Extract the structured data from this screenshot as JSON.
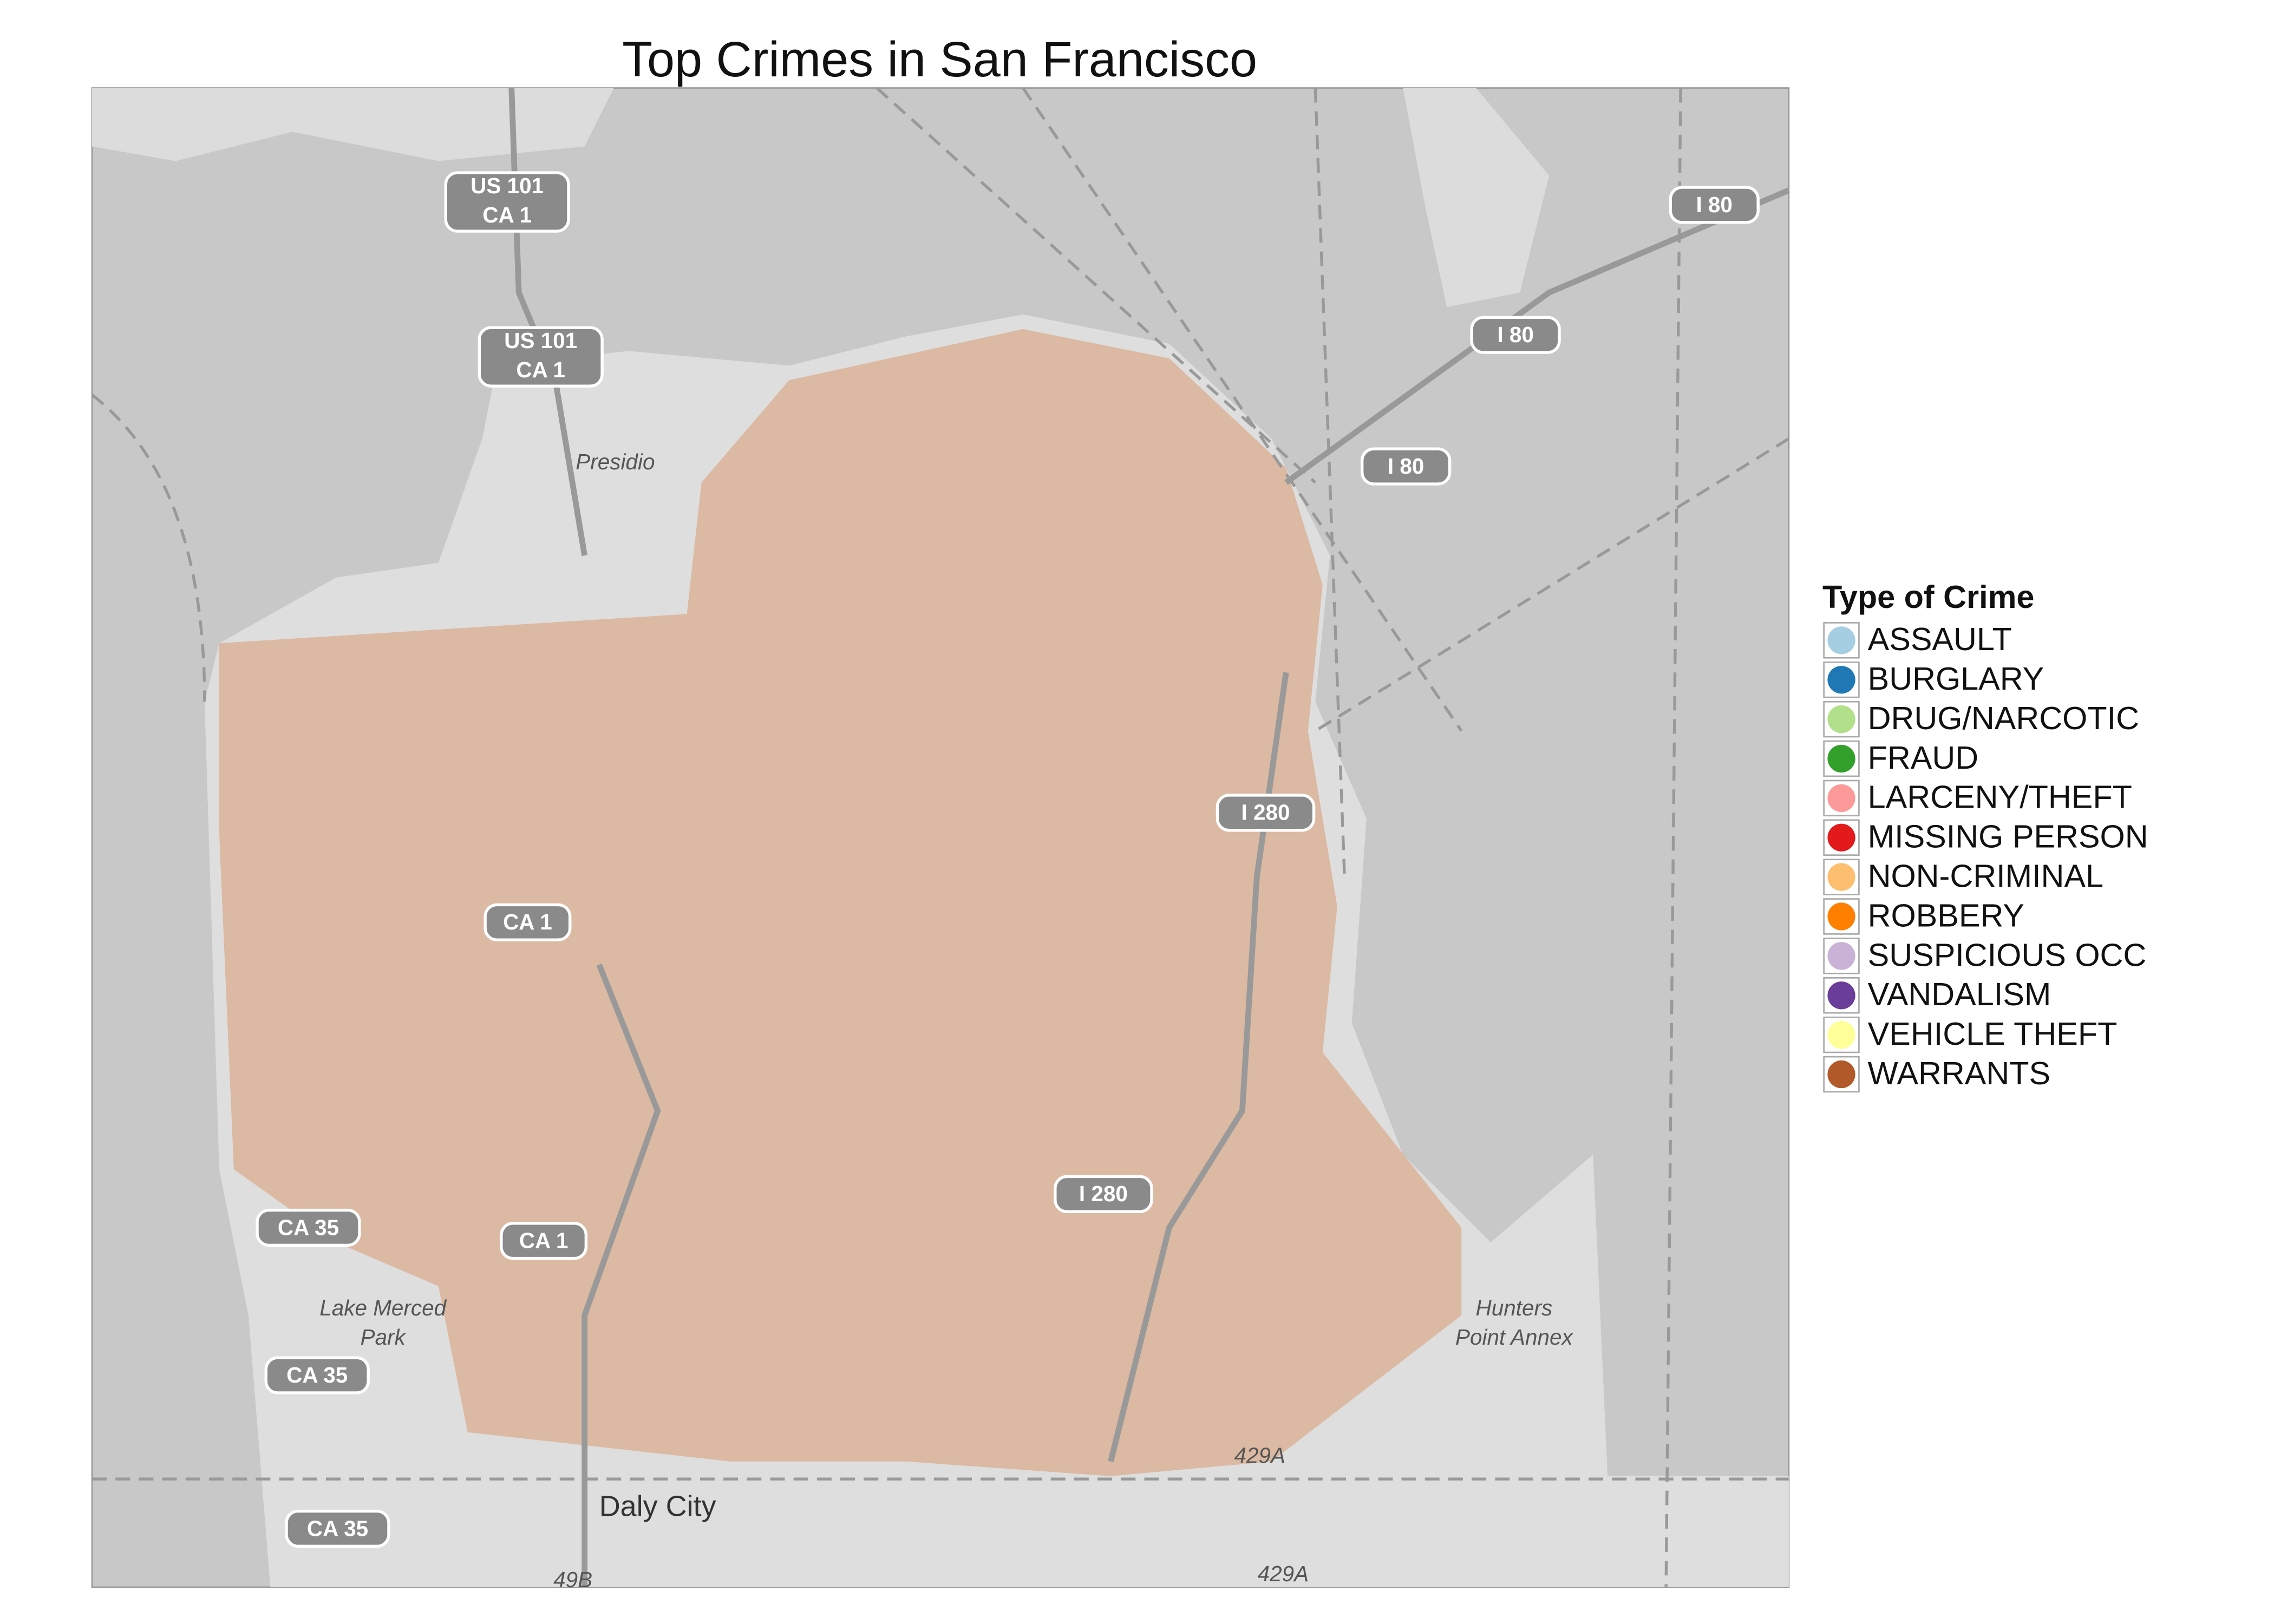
{
  "title": "Top Crimes in San Francisco",
  "legend": {
    "title": "Type of Crime",
    "items": [
      {
        "label": "ASSAULT",
        "color": "#a6cee3"
      },
      {
        "label": "BURGLARY",
        "color": "#1f78b4"
      },
      {
        "label": "DRUG/NARCOTIC",
        "color": "#b2df8a"
      },
      {
        "label": "FRAUD",
        "color": "#33a02c"
      },
      {
        "label": "LARCENY/THEFT",
        "color": "#fb9a99"
      },
      {
        "label": "MISSING PERSON",
        "color": "#e31a1c"
      },
      {
        "label": "NON-CRIMINAL",
        "color": "#fdbf6f"
      },
      {
        "label": "ROBBERY",
        "color": "#ff7f00"
      },
      {
        "label": "SUSPICIOUS OCC",
        "color": "#cab2d6"
      },
      {
        "label": "VANDALISM",
        "color": "#6a3d9a"
      },
      {
        "label": "VEHICLE THEFT",
        "color": "#ffff99"
      },
      {
        "label": "WARRANTS",
        "color": "#b15928"
      }
    ]
  },
  "map_labels": [
    "US 101",
    "CA 1",
    "US 101",
    "CA 1",
    "I 80",
    "I 80",
    "I 80",
    "Presidio",
    "I 280",
    "I 280",
    "CA 35",
    "CA 35",
    "CA 35",
    "CA 1",
    "CA 1",
    "Lake Merced",
    "Park",
    "Hunters",
    "Point Annex",
    "Daly City",
    "429A",
    "429A",
    "49B"
  ]
}
